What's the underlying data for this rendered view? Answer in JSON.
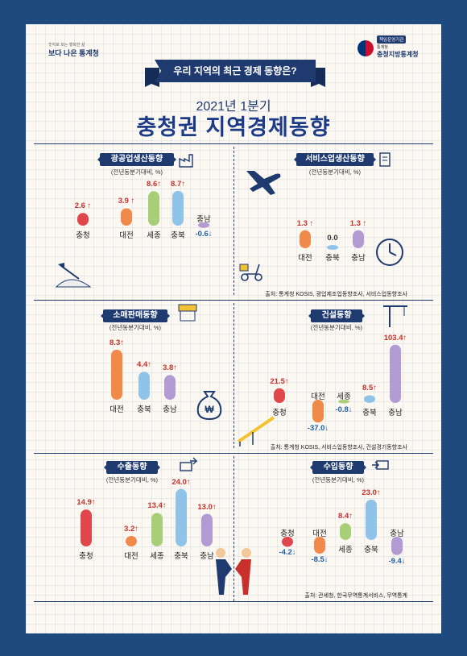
{
  "header": {
    "brand_sub": "숫자로 보는 행복한 삶",
    "brand": "보다 나은 통계청",
    "gov_badge": "책임운영기관",
    "gov_small": "통계청",
    "gov_name": "충청지방통계청",
    "ribbon": "우리 지역의 최근 경제 동향은?",
    "period": "2021년 1분기",
    "title": "충청권 지역경제동향"
  },
  "colors": {
    "positive": "#c8302b",
    "negative": "#1e5fa6",
    "navy": "#1e3a6e",
    "region_colors": {
      "충청": "#e0474c",
      "대전": "#f08a4b",
      "세종": "#a8cf78",
      "충북": "#8fc3e8",
      "충남": "#b29bd2"
    }
  },
  "panels": [
    {
      "title": "광공업생산동향",
      "note": "(전년동분기대비, %)",
      "icon": "factory-icon"
    },
    {
      "title": "서비스업생산동향",
      "note": "(전년동분기대비, %)",
      "icon": "document-icon",
      "source": "출처: 통계청 KOSIS, 광업제조업동향조사, 서비스업동향조사"
    },
    {
      "title": "소매판매동향",
      "note": "(전년동분기대비, %)",
      "icon": "store-icon"
    },
    {
      "title": "건설동향",
      "note": "(전년동분기대비, %)",
      "icon": "crane-icon",
      "source": "출처: 통계청 KOSIS, 서비스업동향조사, 건설경기동향조사"
    },
    {
      "title": "수출동향",
      "note": "(전년동분기대비, %)",
      "icon": "export-icon"
    },
    {
      "title": "수입동향",
      "note": "(전년동분기대비, %)",
      "icon": "import-icon",
      "source": "출처: 관세청, 한국무역통계서비스, 무역통계"
    }
  ],
  "chart_data": [
    {
      "type": "bar",
      "title": "광공업생산동향",
      "ylabel": "(전년동분기대비, %)",
      "categories": [
        "충청",
        "대전",
        "세종",
        "충북",
        "충남"
      ],
      "values": [
        2.6,
        3.9,
        8.6,
        8.7,
        -0.6
      ],
      "labels": [
        "2.6 ↑",
        "3.9 ↑",
        "8.6↑",
        "8.7↑",
        "-0.6↓"
      ]
    },
    {
      "type": "bar",
      "title": "서비스업생산동향",
      "ylabel": "(전년동분기대비, %)",
      "categories": [
        "대전",
        "충북",
        "충남"
      ],
      "values": [
        1.3,
        0.0,
        1.3
      ],
      "labels": [
        "1.3 ↑",
        "0.0",
        "1.3 ↑"
      ]
    },
    {
      "type": "bar",
      "title": "소매판매동향",
      "ylabel": "(전년동분기대비, %)",
      "categories": [
        "대전",
        "충북",
        "충남"
      ],
      "values": [
        8.3,
        4.4,
        3.8
      ],
      "labels": [
        "8.3↑",
        "4.4↑",
        "3.8↑"
      ]
    },
    {
      "type": "bar",
      "title": "건설동향",
      "ylabel": "(전년동분기대비, %)",
      "categories": [
        "충청",
        "대전",
        "세종",
        "충북",
        "충남"
      ],
      "values": [
        21.5,
        -37.0,
        -0.8,
        8.5,
        103.4
      ],
      "labels": [
        "21.5↑",
        "-37.0↓",
        "-0.8↓",
        "8.5↑",
        "103.4↑"
      ]
    },
    {
      "type": "bar",
      "title": "수출동향",
      "ylabel": "(전년동분기대비, %)",
      "categories": [
        "충청",
        "대전",
        "세종",
        "충북",
        "충남"
      ],
      "values": [
        14.9,
        3.2,
        13.4,
        24.0,
        13.0
      ],
      "labels": [
        "14.9↑",
        "3.2↑",
        "13.4↑",
        "24.0↑",
        "13.0↑"
      ]
    },
    {
      "type": "bar",
      "title": "수입동향",
      "ylabel": "(전년동분기대비, %)",
      "categories": [
        "충청",
        "대전",
        "세종",
        "충북",
        "충남"
      ],
      "values": [
        -4.2,
        -8.5,
        8.4,
        23.0,
        -9.4
      ],
      "labels": [
        "-4.2↓",
        "-8.5↓",
        "8.4↑",
        "23.0↑",
        "-9.4↓"
      ]
    }
  ]
}
